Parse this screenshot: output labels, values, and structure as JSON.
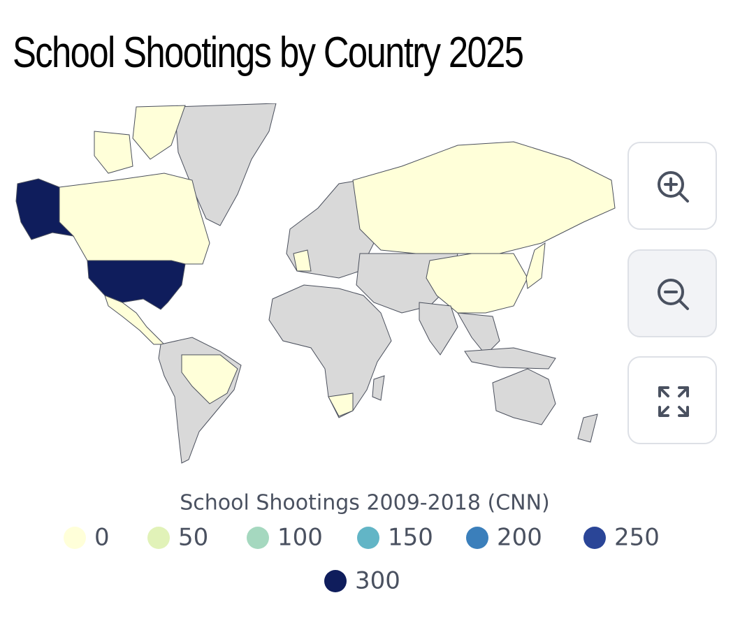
{
  "title": "School Shootings by Country 2025",
  "map": {
    "legend": {
      "title": "School Shootings 2009-2018 (CNN)",
      "stops": [
        {
          "value": 0,
          "color": "#ffffd9"
        },
        {
          "value": 50,
          "color": "#e1f2b8"
        },
        {
          "value": 100,
          "color": "#a5d8bf"
        },
        {
          "value": 150,
          "color": "#62b5c6"
        },
        {
          "value": 200,
          "color": "#3b7fbb"
        },
        {
          "value": 250,
          "color": "#2a4597"
        },
        {
          "value": 300,
          "color": "#0f1d5c"
        }
      ]
    }
  }
}
